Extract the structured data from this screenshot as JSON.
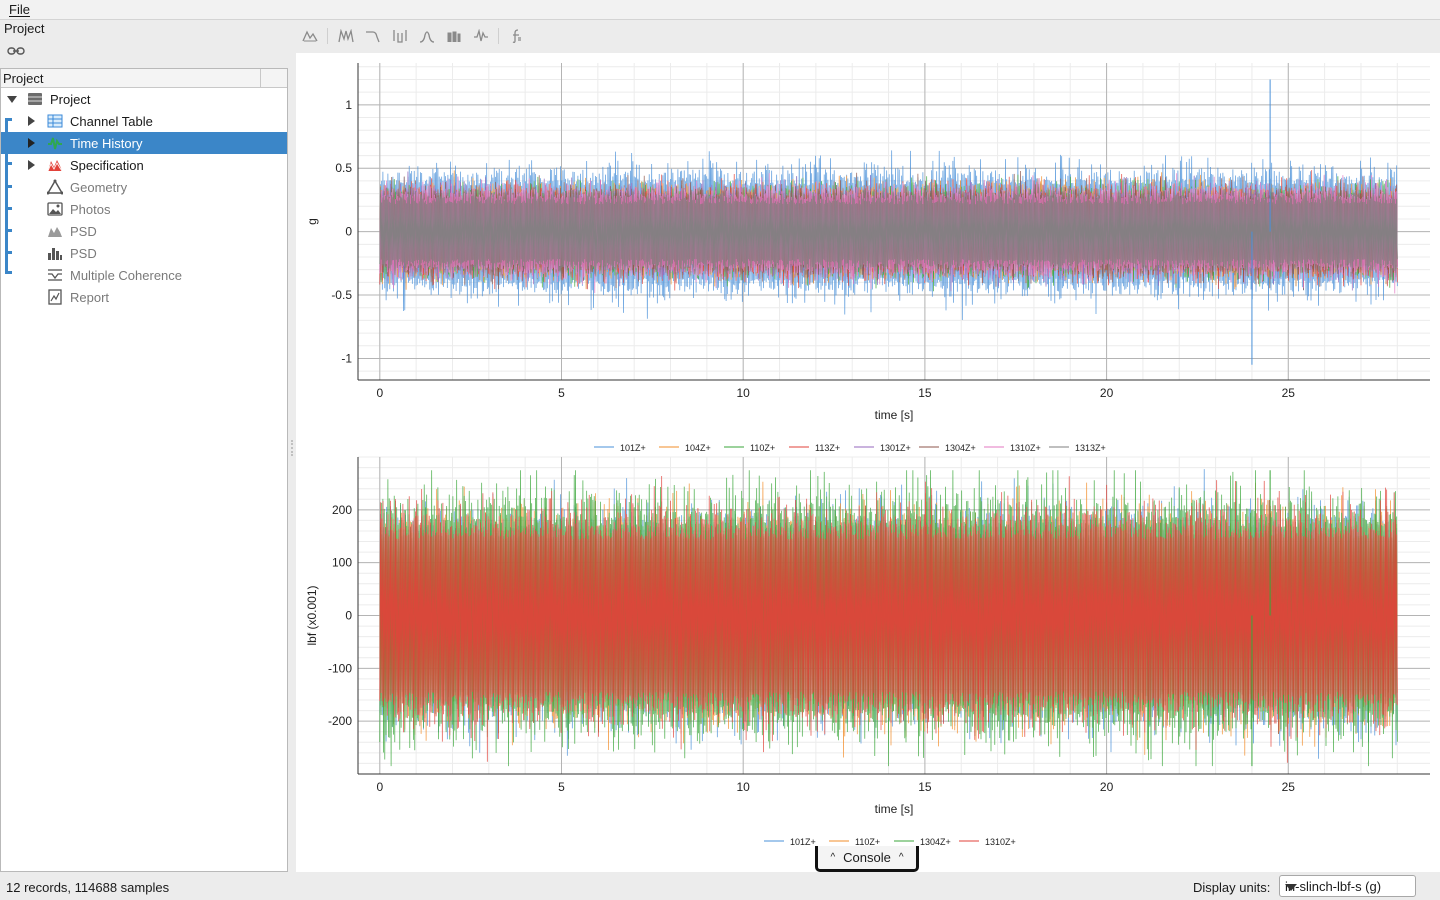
{
  "menu": {
    "file": "File"
  },
  "left_panel": {
    "title": "Project",
    "tree_header": "Project"
  },
  "tree": [
    {
      "label": "Project",
      "icon": "database-icon",
      "state": "expanded"
    },
    {
      "label": "Channel Table",
      "icon": "table-icon",
      "state": "collapsed"
    },
    {
      "label": "Time History",
      "icon": "time-history-icon",
      "state": "collapsed",
      "selected": true
    },
    {
      "label": "Specification",
      "icon": "specification-icon",
      "state": "collapsed"
    },
    {
      "label": "Geometry",
      "icon": "geometry-icon",
      "disabled": true
    },
    {
      "label": "Photos",
      "icon": "photo-icon",
      "disabled": true
    },
    {
      "label": "PSD",
      "icon": "psd-line-icon",
      "disabled": true
    },
    {
      "label": "PSD",
      "icon": "psd-bar-icon",
      "disabled": true
    },
    {
      "label": "Multiple Coherence",
      "icon": "coherence-icon",
      "disabled": true
    },
    {
      "label": "Report",
      "icon": "report-icon",
      "disabled": true
    }
  ],
  "toolbar": [
    "psd-tool-icon",
    "peaks-tool-icon",
    "filter-tool-icon",
    "notch-tool-icon",
    "bell-tool-icon",
    "bars-tool-icon",
    "wave-tool-icon",
    "function-tool-icon"
  ],
  "chart_data": [
    {
      "type": "line",
      "xlabel": "time [s]",
      "ylabel": "g",
      "xlim": [
        -0.6,
        28.9
      ],
      "ylim": [
        -1.17,
        1.33
      ],
      "xticks": [
        0,
        5,
        10,
        15,
        20,
        25
      ],
      "yticks": [
        -1,
        -0.5,
        0,
        0.5,
        1
      ],
      "yticklabels": [
        "-1",
        "-0.5",
        "0",
        "0.5",
        "1"
      ],
      "grid": true,
      "legend_position": "bottom",
      "series": [
        {
          "name": "101Z+",
          "color": "#4a90d9",
          "x_range": [
            0,
            28
          ],
          "typical_amplitude": 0.5,
          "max": 1.2,
          "min": -1.05
        },
        {
          "name": "104Z+",
          "color": "#f28c28",
          "x_range": [
            0,
            28
          ],
          "typical_amplitude": 0.35
        },
        {
          "name": "110Z+",
          "color": "#3aa63a",
          "x_range": [
            0,
            28
          ],
          "typical_amplitude": 0.35
        },
        {
          "name": "113Z+",
          "color": "#e2423a",
          "x_range": [
            0,
            28
          ],
          "typical_amplitude": 0.35
        },
        {
          "name": "1301Z+",
          "color": "#9467bd",
          "x_range": [
            0,
            28
          ],
          "typical_amplitude": 0.35
        },
        {
          "name": "1304Z+",
          "color": "#8c564b",
          "x_range": [
            0,
            28
          ],
          "typical_amplitude": 0.35
        },
        {
          "name": "1310Z+",
          "color": "#e377c2",
          "x_range": [
            0,
            28
          ],
          "typical_amplitude": 0.35
        },
        {
          "name": "1313Z+",
          "color": "#7f7f7f",
          "x_range": [
            0,
            28
          ],
          "typical_amplitude": 0.3
        }
      ]
    },
    {
      "type": "line",
      "xlabel": "time [s]",
      "ylabel": "lbf (x0.001)",
      "xlim": [
        -0.6,
        28.9
      ],
      "ylim": [
        -300,
        300
      ],
      "xticks": [
        0,
        5,
        10,
        15,
        20,
        25
      ],
      "yticks": [
        -200,
        -100,
        0,
        100,
        200
      ],
      "yticklabels": [
        "-200",
        "-100",
        "0",
        "100",
        "200"
      ],
      "grid": true,
      "legend_position": "bottom",
      "series": [
        {
          "name": "101Z+",
          "color": "#4a90d9",
          "x_range": [
            0,
            28
          ],
          "typical_amplitude": 200
        },
        {
          "name": "110Z+",
          "color": "#f28c28",
          "x_range": [
            0,
            28
          ],
          "typical_amplitude": 200
        },
        {
          "name": "1304Z+",
          "color": "#3aa63a",
          "x_range": [
            0,
            28
          ],
          "typical_amplitude": 230,
          "max": 275,
          "min": -285
        },
        {
          "name": "1310Z+",
          "color": "#e2423a",
          "x_range": [
            0,
            28
          ],
          "typical_amplitude": 200
        }
      ]
    }
  ],
  "console": {
    "label": "Console"
  },
  "status": {
    "text": "12 records, 114688 samples",
    "units_label": "Display units:",
    "units_value": "in-slinch-lbf-s (g)"
  }
}
